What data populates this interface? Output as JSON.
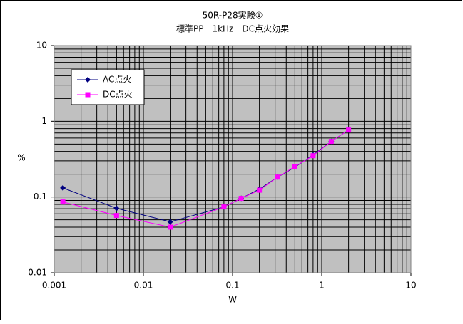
{
  "chart_data": {
    "type": "line",
    "title": "50R-P28実験①",
    "subtitle": "標準PP　1kHz　DC点火効果",
    "x_label": "W",
    "y_label": "%",
    "x": [
      0.00125,
      0.005,
      0.02,
      0.08,
      0.125,
      0.2,
      0.32,
      0.5,
      0.8,
      1.28,
      2.0
    ],
    "series": [
      {
        "name": "AC点火",
        "color": "#000080",
        "marker": "diamond",
        "values": [
          0.132,
          0.071,
          0.047,
          0.074,
          0.096,
          0.127,
          0.183,
          0.248,
          0.359,
          0.542,
          0.766
        ]
      },
      {
        "name": "DC点火",
        "color": "#ff00ff",
        "marker": "square",
        "values": [
          0.086,
          0.057,
          0.04,
          0.074,
          0.096,
          0.123,
          0.183,
          0.253,
          0.351,
          0.542,
          0.766
        ]
      }
    ],
    "xlim": [
      0.001,
      10
    ],
    "ylim": [
      0.01,
      10
    ],
    "xticks": [
      0.001,
      0.01,
      0.1,
      1,
      10
    ],
    "yticks": [
      0.01,
      0.1,
      1,
      10
    ],
    "xlog": true,
    "ylog": true,
    "grid": true,
    "minor_grid": true,
    "legend": "upper left"
  }
}
